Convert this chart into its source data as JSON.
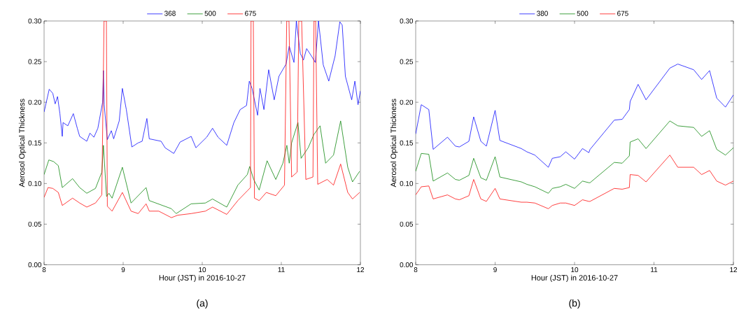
{
  "chart_data": [
    {
      "type": "line",
      "xlabel": "Hour (JST) in 2016-10-27",
      "ylabel": "Aerosol Optical Thickness",
      "xlim": [
        8,
        12
      ],
      "ylim": [
        0,
        0.3
      ],
      "xticks": [
        8,
        9,
        10,
        11,
        12
      ],
      "yticks": [
        {
          "value": 0,
          "label": "0.00"
        },
        {
          "value": 0.05,
          "label": "0.05"
        },
        {
          "value": 0.1,
          "label": "0.10"
        },
        {
          "value": 0.15,
          "label": "0.15"
        },
        {
          "value": 0.2,
          "label": "0.20"
        },
        {
          "value": 0.25,
          "label": "0.25"
        },
        {
          "value": 0.3,
          "label": "0.30"
        }
      ],
      "legend": "top",
      "annotations": [
        "(a)"
      ],
      "series": [
        {
          "name": "368",
          "color": "#0000ff",
          "x": [
            8.0,
            8.065,
            8.11,
            8.14,
            8.17,
            8.2,
            8.23,
            8.24,
            8.3,
            8.37,
            8.42,
            8.45,
            8.54,
            8.58,
            8.63,
            8.68,
            8.74,
            8.75,
            8.76,
            8.8,
            8.85,
            8.88,
            8.95,
            8.99,
            9.04,
            9.11,
            9.19,
            9.24,
            9.3,
            9.33,
            9.48,
            9.53,
            9.64,
            9.72,
            9.86,
            9.92,
            10.056,
            10.13,
            10.2,
            10.31,
            10.4,
            10.48,
            10.56,
            10.595,
            10.63,
            10.7,
            10.73,
            10.78,
            10.84,
            10.91,
            10.97,
            11.06,
            11.1,
            11.16,
            11.19,
            11.24,
            11.28,
            11.32,
            11.38,
            11.43,
            11.47,
            11.53,
            11.6,
            11.68,
            11.74,
            11.77,
            11.81,
            11.89,
            11.93,
            11.97,
            12.0
          ],
          "values": [
            0.188,
            0.216,
            0.211,
            0.198,
            0.207,
            0.186,
            0.158,
            0.175,
            0.171,
            0.186,
            0.168,
            0.158,
            0.152,
            0.162,
            0.157,
            0.168,
            0.2,
            0.239,
            0.197,
            0.154,
            0.165,
            0.155,
            0.177,
            0.217,
            0.191,
            0.145,
            0.15,
            0.152,
            0.18,
            0.155,
            0.152,
            0.144,
            0.137,
            0.151,
            0.158,
            0.144,
            0.157,
            0.168,
            0.157,
            0.147,
            0.175,
            0.191,
            0.196,
            0.226,
            0.217,
            0.184,
            0.217,
            0.191,
            0.24,
            0.203,
            0.232,
            0.247,
            0.269,
            0.249,
            0.3,
            0.26,
            0.252,
            0.266,
            0.257,
            0.249,
            0.3,
            0.246,
            0.226,
            0.257,
            0.299,
            0.295,
            0.232,
            0.203,
            0.226,
            0.197,
            0.214
          ]
        },
        {
          "name": "500",
          "color": "#008000",
          "x": [
            8.0,
            8.06,
            8.12,
            8.18,
            8.23,
            8.36,
            8.45,
            8.54,
            8.65,
            8.73,
            8.75,
            8.79,
            8.82,
            8.86,
            8.99,
            9.1,
            9.29,
            9.33,
            9.61,
            9.67,
            9.86,
            10.04,
            10.13,
            10.31,
            10.45,
            10.57,
            10.6,
            10.65,
            10.72,
            10.82,
            10.93,
            11.02,
            11.07,
            11.1,
            11.13,
            11.21,
            11.25,
            11.34,
            11.41,
            11.49,
            11.56,
            11.66,
            11.75,
            11.84,
            11.9,
            11.99
          ],
          "values": [
            0.111,
            0.129,
            0.127,
            0.122,
            0.095,
            0.106,
            0.095,
            0.088,
            0.094,
            0.114,
            0.147,
            0.084,
            0.088,
            0.082,
            0.12,
            0.076,
            0.095,
            0.079,
            0.069,
            0.063,
            0.075,
            0.076,
            0.081,
            0.071,
            0.098,
            0.111,
            0.121,
            0.105,
            0.092,
            0.128,
            0.105,
            0.125,
            0.147,
            0.125,
            0.15,
            0.175,
            0.131,
            0.144,
            0.16,
            0.171,
            0.125,
            0.135,
            0.177,
            0.12,
            0.102,
            0.115
          ]
        },
        {
          "name": "675",
          "color": "#ff0000",
          "x": [
            8.0,
            8.05,
            8.11,
            8.18,
            8.23,
            8.36,
            8.45,
            8.54,
            8.65,
            8.73,
            8.758,
            8.788,
            8.8,
            8.86,
            8.99,
            9.1,
            9.19,
            9.29,
            9.33,
            9.45,
            9.61,
            9.69,
            9.86,
            10.04,
            10.13,
            10.31,
            10.45,
            10.57,
            10.61,
            10.617,
            10.646,
            10.66,
            10.72,
            10.81,
            10.93,
            11.04,
            11.068,
            11.097,
            11.13,
            11.2,
            11.221,
            11.257,
            11.31,
            11.4,
            11.413,
            11.434,
            11.46,
            11.58,
            11.66,
            11.75,
            11.84,
            11.9,
            11.99
          ],
          "values": [
            0.083,
            0.095,
            0.094,
            0.089,
            0.073,
            0.082,
            0.076,
            0.071,
            0.076,
            0.086,
            0.3,
            0.3,
            0.072,
            0.066,
            0.089,
            0.066,
            0.063,
            0.075,
            0.066,
            0.066,
            0.058,
            0.061,
            0.063,
            0.066,
            0.071,
            0.062,
            0.079,
            0.091,
            0.095,
            0.3,
            0.3,
            0.082,
            0.079,
            0.089,
            0.085,
            0.098,
            0.3,
            0.3,
            0.108,
            0.114,
            0.3,
            0.3,
            0.105,
            0.108,
            0.3,
            0.3,
            0.099,
            0.105,
            0.098,
            0.124,
            0.089,
            0.081,
            0.089
          ]
        }
      ]
    },
    {
      "type": "line",
      "xlabel": "Hour (JST) in 2016-10-27",
      "ylabel": "Aerosol Optical Thickness",
      "xlim": [
        8,
        12
      ],
      "ylim": [
        0,
        0.3
      ],
      "xticks": [
        8,
        9,
        10,
        11,
        12
      ],
      "yticks": [
        {
          "value": 0,
          "label": "0.00"
        },
        {
          "value": 0.05,
          "label": "0.05"
        },
        {
          "value": 0.1,
          "label": "0.10"
        },
        {
          "value": 0.15,
          "label": "0.15"
        },
        {
          "value": 0.2,
          "label": "0.20"
        },
        {
          "value": 0.25,
          "label": "0.25"
        },
        {
          "value": 0.3,
          "label": "0.30"
        }
      ],
      "legend": "top",
      "annotations": [
        "(b)"
      ],
      "x": [
        8.0,
        8.07,
        8.165,
        8.22,
        8.4,
        8.5,
        8.55,
        8.67,
        8.73,
        8.82,
        8.89,
        9.0,
        9.06,
        9.33,
        9.4,
        9.5,
        9.67,
        9.72,
        9.82,
        9.89,
        10.0,
        10.1,
        10.18,
        10.195,
        10.5,
        10.6,
        10.69,
        10.7,
        10.8,
        10.9,
        11.2,
        11.3,
        11.5,
        11.6,
        11.7,
        11.79,
        11.9,
        12.0
      ],
      "series": [
        {
          "name": "380",
          "color": "#0000ff",
          "values": [
            0.161,
            0.197,
            0.191,
            0.142,
            0.157,
            0.146,
            0.145,
            0.152,
            0.182,
            0.152,
            0.146,
            0.19,
            0.153,
            0.143,
            0.139,
            0.135,
            0.12,
            0.131,
            0.133,
            0.139,
            0.13,
            0.143,
            0.138,
            0.142,
            0.178,
            0.179,
            0.191,
            0.201,
            0.222,
            0.203,
            0.242,
            0.247,
            0.24,
            0.228,
            0.239,
            0.205,
            0.194,
            0.209
          ]
        },
        {
          "name": "500",
          "color": "#008000",
          "values": [
            0.115,
            0.137,
            0.136,
            0.103,
            0.113,
            0.105,
            0.104,
            0.11,
            0.131,
            0.107,
            0.104,
            0.133,
            0.108,
            0.102,
            0.099,
            0.096,
            0.088,
            0.094,
            0.096,
            0.099,
            0.094,
            0.103,
            0.101,
            0.101,
            0.126,
            0.125,
            0.134,
            0.151,
            0.155,
            0.143,
            0.177,
            0.171,
            0.169,
            0.158,
            0.165,
            0.142,
            0.135,
            0.144
          ]
        },
        {
          "name": "675",
          "color": "#ff0000",
          "values": [
            0.086,
            0.096,
            0.097,
            0.081,
            0.086,
            0.081,
            0.08,
            0.085,
            0.105,
            0.081,
            0.078,
            0.094,
            0.081,
            0.077,
            0.077,
            0.076,
            0.069,
            0.073,
            0.076,
            0.076,
            0.073,
            0.08,
            0.078,
            0.078,
            0.094,
            0.093,
            0.095,
            0.111,
            0.11,
            0.102,
            0.135,
            0.12,
            0.12,
            0.111,
            0.116,
            0.103,
            0.098,
            0.103
          ]
        }
      ]
    }
  ]
}
